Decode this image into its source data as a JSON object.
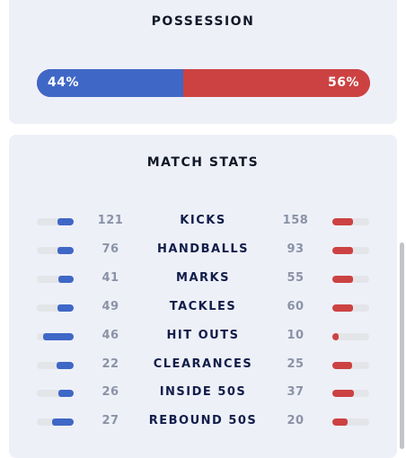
{
  "possession": {
    "title": "POSSESSION",
    "home_label": "44%",
    "away_label": "56%",
    "home_pct": 44,
    "away_pct": 56,
    "home_color": "#3f67c6",
    "away_color": "#cc4242"
  },
  "match_stats": {
    "title": "MATCH STATS",
    "rows": [
      {
        "label": "KICKS",
        "home": "121",
        "away": "158"
      },
      {
        "label": "HANDBALLS",
        "home": "76",
        "away": "93"
      },
      {
        "label": "MARKS",
        "home": "41",
        "away": "55"
      },
      {
        "label": "TACKLES",
        "home": "49",
        "away": "60"
      },
      {
        "label": "HIT OUTS",
        "home": "46",
        "away": "10"
      },
      {
        "label": "CLEARANCES",
        "home": "22",
        "away": "25"
      },
      {
        "label": "INSIDE 50S",
        "home": "26",
        "away": "37"
      },
      {
        "label": "REBOUND 50S",
        "home": "27",
        "away": "20"
      }
    ]
  }
}
